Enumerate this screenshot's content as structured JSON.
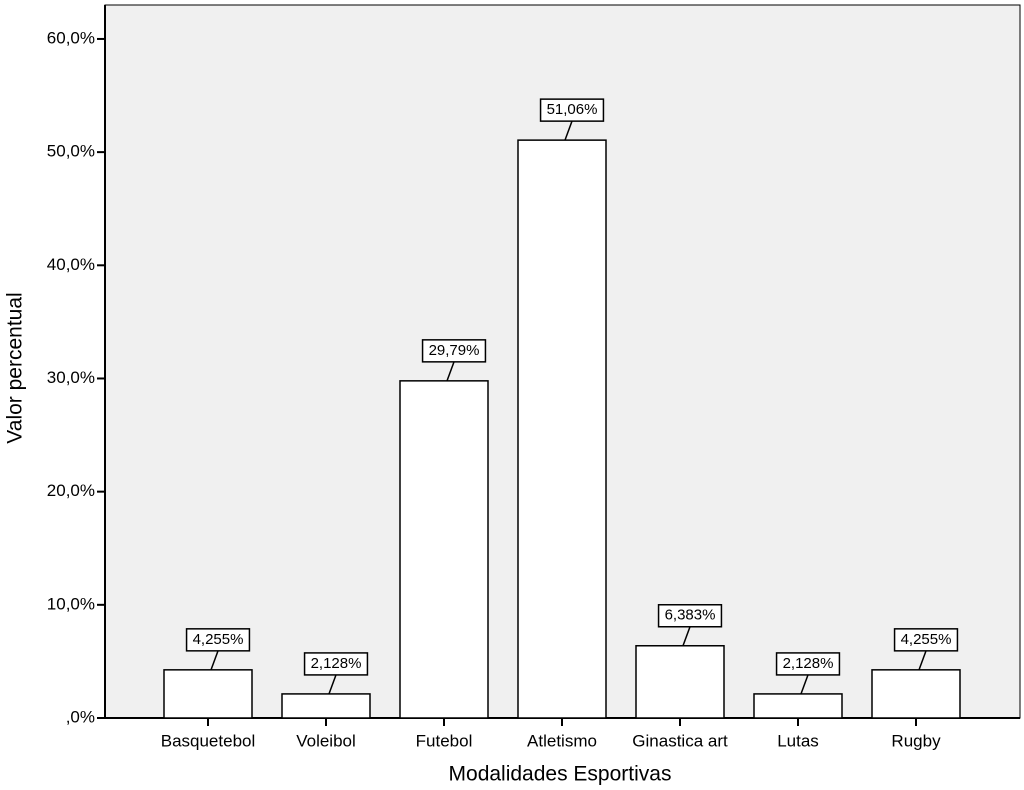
{
  "chart_data": {
    "type": "bar",
    "x_label": "Modalidades Esportivas",
    "y_label": "Valor percentual",
    "categories": [
      "Basquetebol",
      "Voleibol",
      "Futebol",
      "Atletismo",
      "Ginastica art",
      "Lutas",
      "Rugby"
    ],
    "values": [
      4.255,
      2.128,
      29.79,
      51.06,
      6.383,
      2.128,
      4.255
    ],
    "value_labels": [
      "4,255%",
      "2,128%",
      "29,79%",
      "51,06%",
      "6,383%",
      "2,128%",
      "4,255%"
    ],
    "color": "#ffffff",
    "ylim": [
      0,
      63
    ],
    "yticks": [
      {
        "value": 0,
        "label": ",0%"
      },
      {
        "value": 10,
        "label": "10,0%"
      },
      {
        "value": 20,
        "label": "20,0%"
      },
      {
        "value": 30,
        "label": "30,0%"
      },
      {
        "value": 40,
        "label": "40,0%"
      },
      {
        "value": 50,
        "label": "50,0%"
      },
      {
        "value": 60,
        "label": "60,0%"
      }
    ],
    "grid": false
  }
}
